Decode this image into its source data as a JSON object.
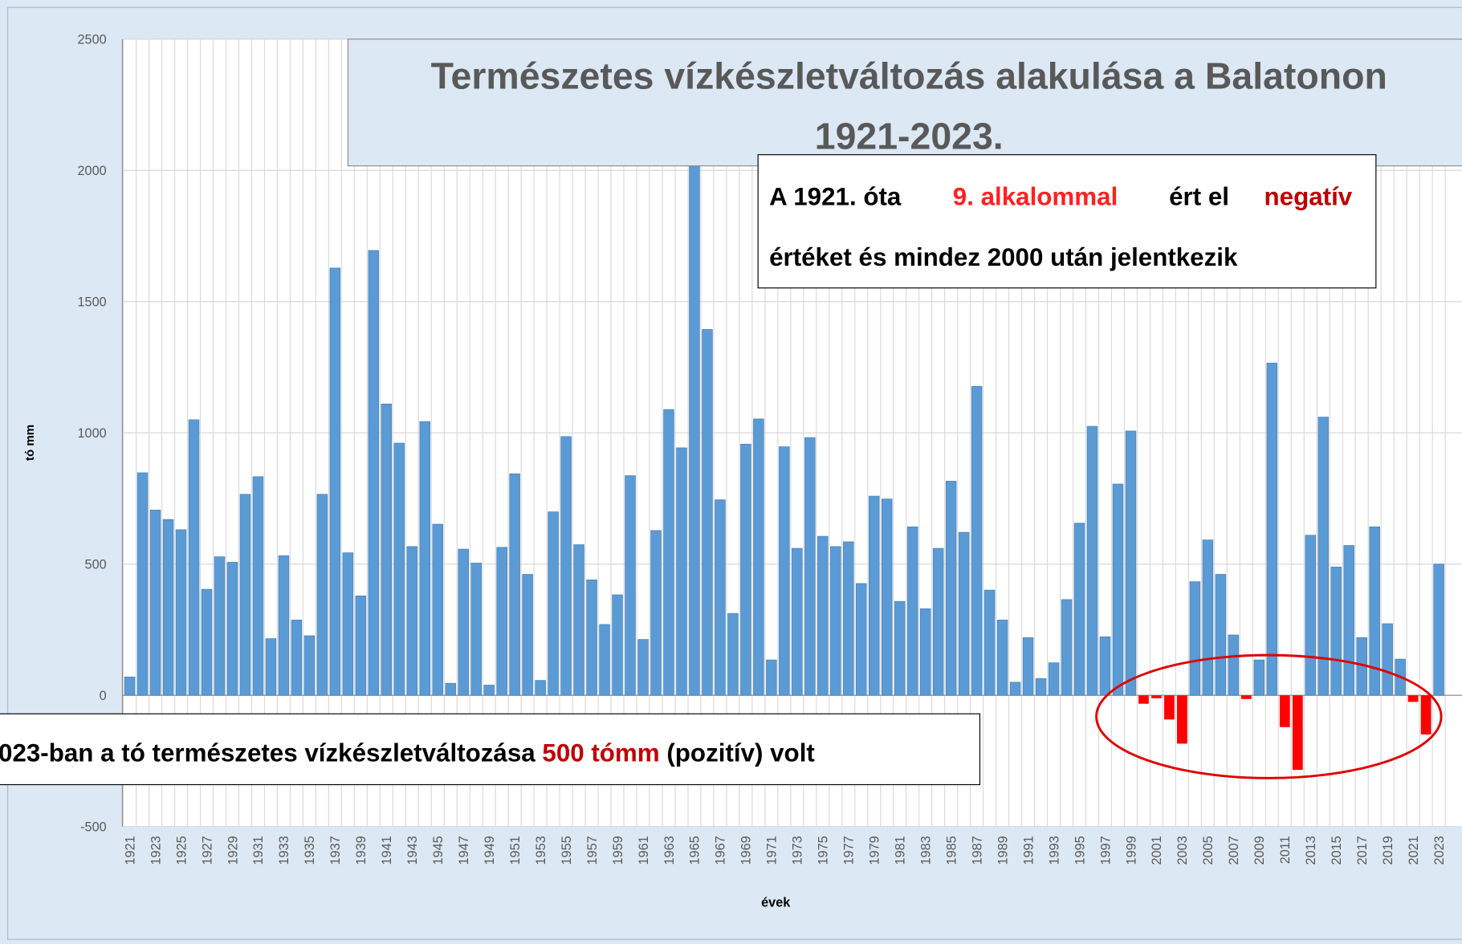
{
  "chart_data": {
    "type": "bar",
    "title": [
      "Természetes vízkészletváltozás alakulása a Balatonon",
      "1921-2023."
    ],
    "y_label": "tó mm",
    "x_label": "évek",
    "categories": [
      "1921",
      null,
      "1923",
      null,
      "1925",
      null,
      "1927",
      null,
      "1929",
      null,
      "1931",
      null,
      "1933",
      null,
      "1935",
      null,
      "1937",
      null,
      "1939",
      null,
      "1941",
      null,
      "1943",
      null,
      "1945",
      null,
      "1947",
      null,
      "1949",
      null,
      "1951",
      null,
      "1953",
      null,
      "1955",
      null,
      "1957",
      null,
      "1959",
      null,
      "1961",
      null,
      "1963",
      null,
      "1965",
      null,
      "1967",
      null,
      "1969",
      null,
      "1971",
      null,
      "1973",
      null,
      "1975",
      null,
      "1977",
      null,
      "1979",
      null,
      "1981",
      null,
      "1983",
      null,
      "1985",
      null,
      "1987",
      null,
      "1989",
      null,
      "1991",
      null,
      "1993",
      null,
      "1995",
      null,
      "1997",
      null,
      "1999",
      null,
      "2001",
      null,
      "2003",
      null,
      "2005",
      null,
      "2007",
      null,
      "2009",
      null,
      "2011",
      null,
      "2013",
      null,
      "2015",
      null,
      "2017",
      null,
      "2019",
      null,
      "2021",
      null,
      "2023"
    ],
    "values": [
      70,
      848,
      706,
      670,
      631,
      1050,
      404,
      528,
      507,
      766,
      833,
      216,
      532,
      287,
      227,
      766,
      1628,
      543,
      379,
      1695,
      1110,
      961,
      567,
      1043,
      652,
      46,
      557,
      504,
      39,
      564,
      844,
      461,
      57,
      699,
      986,
      574,
      440,
      270,
      383,
      837,
      213,
      628,
      1089,
      943,
      2030,
      1394,
      745,
      312,
      957,
      1053,
      135,
      947,
      560,
      982,
      606,
      567,
      585,
      426,
      759,
      748,
      358,
      642,
      330,
      560,
      816,
      621,
      1177,
      401,
      287,
      50,
      220,
      64,
      124,
      365,
      656,
      1025,
      223,
      805,
      1007,
      -32,
      -11,
      -92,
      -184,
      433,
      592,
      461,
      230,
      -14,
      135,
      1266,
      -121,
      -284,
      610,
      1060,
      489,
      571,
      220,
      642,
      273,
      138,
      -25,
      -149,
      500
    ],
    "color": "#5b9bd5",
    "negative_color": "#ff0000",
    "ylim": [
      -500,
      2500
    ],
    "yticks": [
      -500,
      0,
      500,
      1000,
      1500,
      2000,
      2500
    ],
    "grid": true,
    "annotations": [
      {
        "lines": [
          [
            {
              "text": "A 1921. óta"
            },
            {
              "text": "9. alkalommal",
              "color": "#ff2020"
            },
            {
              "text": "ért el"
            },
            {
              "text": "negatív",
              "color": "#c00000"
            }
          ],
          [
            {
              "text": "értéket és mindez 2000 után jelentkezik"
            }
          ]
        ]
      },
      {
        "lines": [
          [
            {
              "text": "023-ban a tó természetes vízkészletváltozása "
            },
            {
              "text": "500 tómm",
              "color": "#c00000"
            },
            {
              "text": " (pozitív) volt"
            }
          ]
        ]
      }
    ]
  }
}
